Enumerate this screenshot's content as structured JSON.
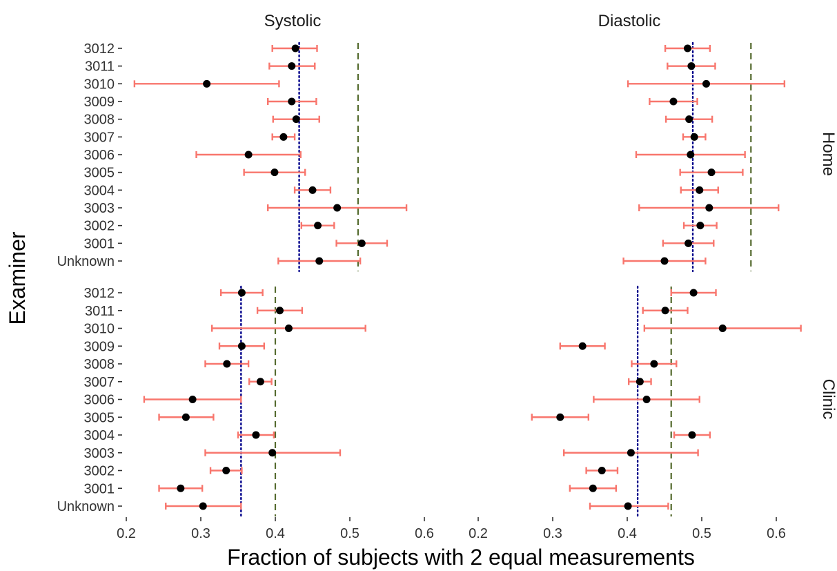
{
  "chart_data": {
    "type": "scatter",
    "subtype": "point-with-errorbars, faceted 2x2",
    "xlabel": "Fraction of subjects with 2 equal measurements",
    "ylabel": "Examiner",
    "columns": [
      "Systolic",
      "Diastolic"
    ],
    "rows": [
      "Home",
      "Clinic"
    ],
    "categories": [
      "3012",
      "3011",
      "3010",
      "3009",
      "3008",
      "3007",
      "3006",
      "3005",
      "3004",
      "3003",
      "3002",
      "3001",
      "Unknown"
    ],
    "xlim": [
      0.2,
      0.65
    ],
    "xticks": [
      0.2,
      0.3,
      0.4,
      0.5,
      0.6
    ],
    "xtick_labels": [
      "0.2",
      "0.3",
      "0.4",
      "0.5",
      "0.6"
    ],
    "colors": {
      "errorbar": "#F8766D",
      "point": "#000000",
      "dashed_line": "#556B2F",
      "dotted_line": "#00008B"
    },
    "panels": [
      {
        "column": "Systolic",
        "row": "Home",
        "dotted_line": 0.432,
        "dashed_line": 0.511,
        "points": [
          {
            "examiner": "3012",
            "value": 0.427,
            "low": 0.396,
            "high": 0.456
          },
          {
            "examiner": "3011",
            "value": 0.422,
            "low": 0.392,
            "high": 0.453
          },
          {
            "examiner": "3010",
            "value": 0.308,
            "low": 0.211,
            "high": 0.405
          },
          {
            "examiner": "3009",
            "value": 0.422,
            "low": 0.39,
            "high": 0.455
          },
          {
            "examiner": "3008",
            "value": 0.428,
            "low": 0.397,
            "high": 0.459
          },
          {
            "examiner": "3007",
            "value": 0.411,
            "low": 0.396,
            "high": 0.426
          },
          {
            "examiner": "3006",
            "value": 0.364,
            "low": 0.294,
            "high": 0.434
          },
          {
            "examiner": "3005",
            "value": 0.399,
            "low": 0.358,
            "high": 0.44
          },
          {
            "examiner": "3004",
            "value": 0.45,
            "low": 0.426,
            "high": 0.474
          },
          {
            "examiner": "3003",
            "value": 0.483,
            "low": 0.39,
            "high": 0.576
          },
          {
            "examiner": "3002",
            "value": 0.457,
            "low": 0.435,
            "high": 0.479
          },
          {
            "examiner": "3001",
            "value": 0.516,
            "low": 0.482,
            "high": 0.55
          },
          {
            "examiner": "Unknown",
            "value": 0.459,
            "low": 0.404,
            "high": 0.514
          }
        ]
      },
      {
        "column": "Diastolic",
        "row": "Home",
        "dotted_line": 0.488,
        "dashed_line": 0.566,
        "points": [
          {
            "examiner": "3012",
            "value": 0.481,
            "low": 0.451,
            "high": 0.511
          },
          {
            "examiner": "3011",
            "value": 0.486,
            "low": 0.454,
            "high": 0.518
          },
          {
            "examiner": "3010",
            "value": 0.506,
            "low": 0.401,
            "high": 0.611
          },
          {
            "examiner": "3009",
            "value": 0.462,
            "low": 0.43,
            "high": 0.494
          },
          {
            "examiner": "3008",
            "value": 0.483,
            "low": 0.452,
            "high": 0.514
          },
          {
            "examiner": "3007",
            "value": 0.49,
            "low": 0.475,
            "high": 0.505
          },
          {
            "examiner": "3006",
            "value": 0.485,
            "low": 0.412,
            "high": 0.558
          },
          {
            "examiner": "3005",
            "value": 0.513,
            "low": 0.471,
            "high": 0.555
          },
          {
            "examiner": "3004",
            "value": 0.497,
            "low": 0.472,
            "high": 0.522
          },
          {
            "examiner": "3003",
            "value": 0.51,
            "low": 0.416,
            "high": 0.603
          },
          {
            "examiner": "3002",
            "value": 0.498,
            "low": 0.476,
            "high": 0.52
          },
          {
            "examiner": "3001",
            "value": 0.482,
            "low": 0.448,
            "high": 0.516
          },
          {
            "examiner": "Unknown",
            "value": 0.45,
            "low": 0.395,
            "high": 0.505
          }
        ]
      },
      {
        "column": "Systolic",
        "row": "Clinic",
        "dotted_line": 0.354,
        "dashed_line": 0.4,
        "points": [
          {
            "examiner": "3012",
            "value": 0.355,
            "low": 0.327,
            "high": 0.383
          },
          {
            "examiner": "3011",
            "value": 0.406,
            "low": 0.376,
            "high": 0.436
          },
          {
            "examiner": "3010",
            "value": 0.418,
            "low": 0.315,
            "high": 0.521
          },
          {
            "examiner": "3009",
            "value": 0.355,
            "low": 0.325,
            "high": 0.385
          },
          {
            "examiner": "3008",
            "value": 0.335,
            "low": 0.306,
            "high": 0.364
          },
          {
            "examiner": "3007",
            "value": 0.38,
            "low": 0.365,
            "high": 0.395
          },
          {
            "examiner": "3006",
            "value": 0.289,
            "low": 0.224,
            "high": 0.354
          },
          {
            "examiner": "3005",
            "value": 0.28,
            "low": 0.244,
            "high": 0.317
          },
          {
            "examiner": "3004",
            "value": 0.374,
            "low": 0.35,
            "high": 0.398
          },
          {
            "examiner": "3003",
            "value": 0.396,
            "low": 0.306,
            "high": 0.487
          },
          {
            "examiner": "3002",
            "value": 0.334,
            "low": 0.313,
            "high": 0.355
          },
          {
            "examiner": "3001",
            "value": 0.273,
            "low": 0.244,
            "high": 0.302
          },
          {
            "examiner": "Unknown",
            "value": 0.303,
            "low": 0.253,
            "high": 0.354
          }
        ]
      },
      {
        "column": "Diastolic",
        "row": "Clinic",
        "dotted_line": 0.414,
        "dashed_line": 0.459,
        "points": [
          {
            "examiner": "3012",
            "value": 0.489,
            "low": 0.459,
            "high": 0.519
          },
          {
            "examiner": "3011",
            "value": 0.451,
            "low": 0.421,
            "high": 0.481
          },
          {
            "examiner": "3010",
            "value": 0.528,
            "low": 0.423,
            "high": 0.633
          },
          {
            "examiner": "3009",
            "value": 0.34,
            "low": 0.31,
            "high": 0.37
          },
          {
            "examiner": "3008",
            "value": 0.436,
            "low": 0.406,
            "high": 0.466
          },
          {
            "examiner": "3007",
            "value": 0.417,
            "low": 0.402,
            "high": 0.432
          },
          {
            "examiner": "3006",
            "value": 0.426,
            "low": 0.355,
            "high": 0.497
          },
          {
            "examiner": "3005",
            "value": 0.31,
            "low": 0.272,
            "high": 0.348
          },
          {
            "examiner": "3004",
            "value": 0.487,
            "low": 0.463,
            "high": 0.511
          },
          {
            "examiner": "3003",
            "value": 0.405,
            "low": 0.315,
            "high": 0.495
          },
          {
            "examiner": "3002",
            "value": 0.366,
            "low": 0.345,
            "high": 0.387
          },
          {
            "examiner": "3001",
            "value": 0.354,
            "low": 0.323,
            "high": 0.385
          },
          {
            "examiner": "Unknown",
            "value": 0.401,
            "low": 0.35,
            "high": 0.455
          }
        ]
      }
    ]
  }
}
